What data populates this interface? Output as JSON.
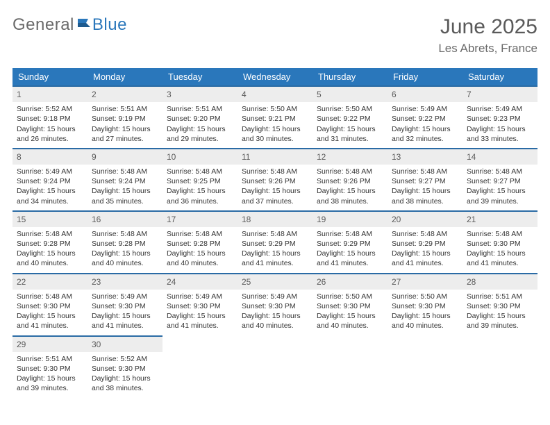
{
  "logo": {
    "part1": "General",
    "part2": "Blue"
  },
  "title": "June 2025",
  "location": "Les Abrets, France",
  "colors": {
    "header_bg": "#2a77bb",
    "header_text": "#ffffff",
    "daynum_bg": "#ededed",
    "daynum_text": "#5a5a5a",
    "row_border": "#2a6ba5",
    "body_text": "#333333",
    "title_text": "#5a5a5a",
    "logo_gray": "#6a6a6a",
    "logo_blue": "#2a77bb"
  },
  "day_headers": [
    "Sunday",
    "Monday",
    "Tuesday",
    "Wednesday",
    "Thursday",
    "Friday",
    "Saturday"
  ],
  "days": {
    "d1": {
      "n": "1",
      "sr": "Sunrise: 5:52 AM",
      "ss": "Sunset: 9:18 PM",
      "dl1": "Daylight: 15 hours",
      "dl2": "and 26 minutes."
    },
    "d2": {
      "n": "2",
      "sr": "Sunrise: 5:51 AM",
      "ss": "Sunset: 9:19 PM",
      "dl1": "Daylight: 15 hours",
      "dl2": "and 27 minutes."
    },
    "d3": {
      "n": "3",
      "sr": "Sunrise: 5:51 AM",
      "ss": "Sunset: 9:20 PM",
      "dl1": "Daylight: 15 hours",
      "dl2": "and 29 minutes."
    },
    "d4": {
      "n": "4",
      "sr": "Sunrise: 5:50 AM",
      "ss": "Sunset: 9:21 PM",
      "dl1": "Daylight: 15 hours",
      "dl2": "and 30 minutes."
    },
    "d5": {
      "n": "5",
      "sr": "Sunrise: 5:50 AM",
      "ss": "Sunset: 9:22 PM",
      "dl1": "Daylight: 15 hours",
      "dl2": "and 31 minutes."
    },
    "d6": {
      "n": "6",
      "sr": "Sunrise: 5:49 AM",
      "ss": "Sunset: 9:22 PM",
      "dl1": "Daylight: 15 hours",
      "dl2": "and 32 minutes."
    },
    "d7": {
      "n": "7",
      "sr": "Sunrise: 5:49 AM",
      "ss": "Sunset: 9:23 PM",
      "dl1": "Daylight: 15 hours",
      "dl2": "and 33 minutes."
    },
    "d8": {
      "n": "8",
      "sr": "Sunrise: 5:49 AM",
      "ss": "Sunset: 9:24 PM",
      "dl1": "Daylight: 15 hours",
      "dl2": "and 34 minutes."
    },
    "d9": {
      "n": "9",
      "sr": "Sunrise: 5:48 AM",
      "ss": "Sunset: 9:24 PM",
      "dl1": "Daylight: 15 hours",
      "dl2": "and 35 minutes."
    },
    "d10": {
      "n": "10",
      "sr": "Sunrise: 5:48 AM",
      "ss": "Sunset: 9:25 PM",
      "dl1": "Daylight: 15 hours",
      "dl2": "and 36 minutes."
    },
    "d11": {
      "n": "11",
      "sr": "Sunrise: 5:48 AM",
      "ss": "Sunset: 9:26 PM",
      "dl1": "Daylight: 15 hours",
      "dl2": "and 37 minutes."
    },
    "d12": {
      "n": "12",
      "sr": "Sunrise: 5:48 AM",
      "ss": "Sunset: 9:26 PM",
      "dl1": "Daylight: 15 hours",
      "dl2": "and 38 minutes."
    },
    "d13": {
      "n": "13",
      "sr": "Sunrise: 5:48 AM",
      "ss": "Sunset: 9:27 PM",
      "dl1": "Daylight: 15 hours",
      "dl2": "and 38 minutes."
    },
    "d14": {
      "n": "14",
      "sr": "Sunrise: 5:48 AM",
      "ss": "Sunset: 9:27 PM",
      "dl1": "Daylight: 15 hours",
      "dl2": "and 39 minutes."
    },
    "d15": {
      "n": "15",
      "sr": "Sunrise: 5:48 AM",
      "ss": "Sunset: 9:28 PM",
      "dl1": "Daylight: 15 hours",
      "dl2": "and 40 minutes."
    },
    "d16": {
      "n": "16",
      "sr": "Sunrise: 5:48 AM",
      "ss": "Sunset: 9:28 PM",
      "dl1": "Daylight: 15 hours",
      "dl2": "and 40 minutes."
    },
    "d17": {
      "n": "17",
      "sr": "Sunrise: 5:48 AM",
      "ss": "Sunset: 9:28 PM",
      "dl1": "Daylight: 15 hours",
      "dl2": "and 40 minutes."
    },
    "d18": {
      "n": "18",
      "sr": "Sunrise: 5:48 AM",
      "ss": "Sunset: 9:29 PM",
      "dl1": "Daylight: 15 hours",
      "dl2": "and 41 minutes."
    },
    "d19": {
      "n": "19",
      "sr": "Sunrise: 5:48 AM",
      "ss": "Sunset: 9:29 PM",
      "dl1": "Daylight: 15 hours",
      "dl2": "and 41 minutes."
    },
    "d20": {
      "n": "20",
      "sr": "Sunrise: 5:48 AM",
      "ss": "Sunset: 9:29 PM",
      "dl1": "Daylight: 15 hours",
      "dl2": "and 41 minutes."
    },
    "d21": {
      "n": "21",
      "sr": "Sunrise: 5:48 AM",
      "ss": "Sunset: 9:30 PM",
      "dl1": "Daylight: 15 hours",
      "dl2": "and 41 minutes."
    },
    "d22": {
      "n": "22",
      "sr": "Sunrise: 5:48 AM",
      "ss": "Sunset: 9:30 PM",
      "dl1": "Daylight: 15 hours",
      "dl2": "and 41 minutes."
    },
    "d23": {
      "n": "23",
      "sr": "Sunrise: 5:49 AM",
      "ss": "Sunset: 9:30 PM",
      "dl1": "Daylight: 15 hours",
      "dl2": "and 41 minutes."
    },
    "d24": {
      "n": "24",
      "sr": "Sunrise: 5:49 AM",
      "ss": "Sunset: 9:30 PM",
      "dl1": "Daylight: 15 hours",
      "dl2": "and 41 minutes."
    },
    "d25": {
      "n": "25",
      "sr": "Sunrise: 5:49 AM",
      "ss": "Sunset: 9:30 PM",
      "dl1": "Daylight: 15 hours",
      "dl2": "and 40 minutes."
    },
    "d26": {
      "n": "26",
      "sr": "Sunrise: 5:50 AM",
      "ss": "Sunset: 9:30 PM",
      "dl1": "Daylight: 15 hours",
      "dl2": "and 40 minutes."
    },
    "d27": {
      "n": "27",
      "sr": "Sunrise: 5:50 AM",
      "ss": "Sunset: 9:30 PM",
      "dl1": "Daylight: 15 hours",
      "dl2": "and 40 minutes."
    },
    "d28": {
      "n": "28",
      "sr": "Sunrise: 5:51 AM",
      "ss": "Sunset: 9:30 PM",
      "dl1": "Daylight: 15 hours",
      "dl2": "and 39 minutes."
    },
    "d29": {
      "n": "29",
      "sr": "Sunrise: 5:51 AM",
      "ss": "Sunset: 9:30 PM",
      "dl1": "Daylight: 15 hours",
      "dl2": "and 39 minutes."
    },
    "d30": {
      "n": "30",
      "sr": "Sunrise: 5:52 AM",
      "ss": "Sunset: 9:30 PM",
      "dl1": "Daylight: 15 hours",
      "dl2": "and 38 minutes."
    }
  }
}
